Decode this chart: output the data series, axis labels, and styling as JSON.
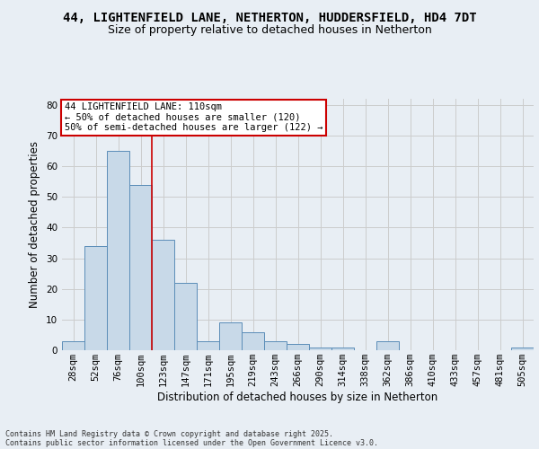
{
  "title_line1": "44, LIGHTENFIELD LANE, NETHERTON, HUDDERSFIELD, HD4 7DT",
  "title_line2": "Size of property relative to detached houses in Netherton",
  "xlabel": "Distribution of detached houses by size in Netherton",
  "ylabel": "Number of detached properties",
  "categories": [
    "28sqm",
    "52sqm",
    "76sqm",
    "100sqm",
    "123sqm",
    "147sqm",
    "171sqm",
    "195sqm",
    "219sqm",
    "243sqm",
    "266sqm",
    "290sqm",
    "314sqm",
    "338sqm",
    "362sqm",
    "386sqm",
    "410sqm",
    "433sqm",
    "457sqm",
    "481sqm",
    "505sqm"
  ],
  "values": [
    3,
    34,
    65,
    54,
    36,
    22,
    3,
    9,
    6,
    3,
    2,
    1,
    1,
    0,
    3,
    0,
    0,
    0,
    0,
    0,
    1
  ],
  "bar_color": "#c8d9e8",
  "bar_edge_color": "#5b8db8",
  "vline_x": 3.5,
  "vline_color": "#cc0000",
  "annotation_text": "44 LIGHTENFIELD LANE: 110sqm\n← 50% of detached houses are smaller (120)\n50% of semi-detached houses are larger (122) →",
  "annotation_box_color": "white",
  "annotation_box_edge": "#cc0000",
  "ylim": [
    0,
    82
  ],
  "yticks": [
    0,
    10,
    20,
    30,
    40,
    50,
    60,
    70,
    80
  ],
  "grid_color": "#cccccc",
  "bg_color": "#e8eef4",
  "plot_bg_color": "#e8eef4",
  "footnote_line1": "Contains HM Land Registry data © Crown copyright and database right 2025.",
  "footnote_line2": "Contains public sector information licensed under the Open Government Licence v3.0.",
  "title_fontsize": 10,
  "subtitle_fontsize": 9,
  "axis_label_fontsize": 8.5,
  "tick_fontsize": 7.5,
  "annotation_fontsize": 7.5,
  "footnote_fontsize": 6
}
